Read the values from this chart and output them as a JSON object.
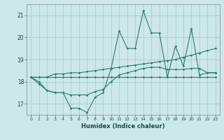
{
  "xlabel": "Humidex (Indice chaleur)",
  "bg_color": "#cce8e8",
  "line_color": "#2d7a6e",
  "grid_color": "#aacccc",
  "xlim": [
    -0.5,
    23.5
  ],
  "ylim": [
    16.5,
    21.5
  ],
  "yticks": [
    17,
    18,
    19,
    20,
    21
  ],
  "xticks": [
    0,
    1,
    2,
    3,
    4,
    5,
    6,
    7,
    8,
    9,
    10,
    11,
    12,
    13,
    14,
    15,
    16,
    17,
    18,
    19,
    20,
    21,
    22,
    23
  ],
  "series1": [
    18.2,
    17.9,
    17.6,
    17.5,
    17.5,
    16.8,
    16.8,
    16.6,
    17.3,
    17.5,
    18.6,
    20.3,
    19.5,
    19.5,
    21.2,
    20.2,
    20.2,
    18.2,
    19.6,
    18.7,
    20.4,
    18.3,
    18.4,
    18.4
  ],
  "series2": [
    18.2,
    18.2,
    18.2,
    18.35,
    18.35,
    18.4,
    18.4,
    18.45,
    18.5,
    18.55,
    18.6,
    18.65,
    18.7,
    18.75,
    18.8,
    18.85,
    18.9,
    18.95,
    19.0,
    19.1,
    19.2,
    19.3,
    19.4,
    19.5
  ],
  "series3": [
    18.2,
    18.2,
    18.2,
    18.2,
    18.2,
    18.2,
    18.2,
    18.2,
    18.2,
    18.2,
    18.2,
    18.2,
    18.2,
    18.2,
    18.2,
    18.2,
    18.2,
    18.2,
    18.2,
    18.2,
    18.2,
    18.2,
    18.2,
    18.2
  ],
  "series4": [
    18.2,
    18.0,
    17.6,
    17.5,
    17.5,
    17.4,
    17.4,
    17.4,
    17.55,
    17.65,
    18.0,
    18.3,
    18.4,
    18.5,
    18.6,
    18.65,
    18.65,
    18.55,
    18.55,
    18.55,
    18.6,
    18.6,
    18.4,
    18.4
  ]
}
